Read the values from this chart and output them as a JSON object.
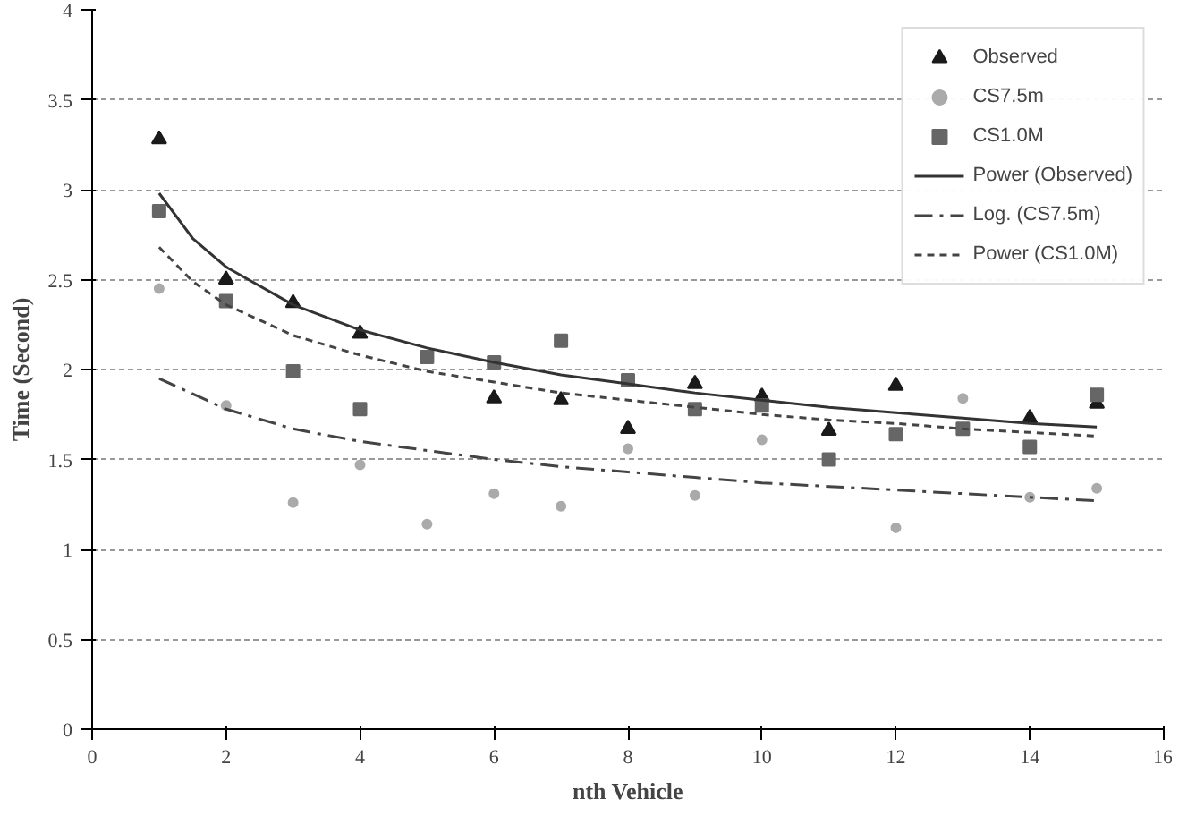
{
  "chart_data": {
    "type": "scatter",
    "xlabel": "nth Vehicle",
    "ylabel": "Time (Second)",
    "xlim": [
      0,
      16
    ],
    "xticks": [
      0,
      2,
      4,
      6,
      8,
      10,
      12,
      14,
      16
    ],
    "ylim": [
      0,
      4
    ],
    "yticks": [
      0,
      0.5,
      1,
      1.5,
      2,
      2.5,
      3,
      3.5,
      4
    ],
    "x": [
      1,
      2,
      3,
      4,
      5,
      6,
      7,
      8,
      9,
      10,
      11,
      12,
      13,
      14,
      15
    ],
    "grid": "y",
    "legend": "top right",
    "series": [
      {
        "name": "Observed",
        "color": "#1a1a1a",
        "marker": "triangle",
        "values": [
          3.28,
          2.5,
          2.37,
          2.2,
          null,
          1.84,
          1.83,
          1.67,
          1.92,
          1.85,
          1.66,
          1.91,
          null,
          1.73,
          1.81
        ]
      },
      {
        "name": "CS7.5m",
        "color": "#aaaaaa",
        "marker": "circle",
        "values": [
          2.45,
          1.8,
          1.26,
          1.47,
          1.14,
          1.31,
          1.24,
          1.56,
          1.3,
          1.61,
          null,
          1.12,
          1.84,
          1.29,
          1.34
        ]
      },
      {
        "name": "CS1.0M",
        "color": "#666666",
        "marker": "square",
        "values": [
          2.88,
          2.38,
          1.99,
          1.78,
          2.07,
          2.04,
          2.16,
          1.94,
          1.78,
          1.8,
          1.5,
          1.64,
          1.67,
          1.57,
          1.86
        ]
      },
      {
        "name": "Power (Observed)",
        "type": "line",
        "color": "#333333",
        "line_style": "solid",
        "x": [
          1,
          1.5,
          2,
          3,
          4,
          5,
          6,
          7,
          8,
          9,
          10,
          11,
          12,
          13,
          14,
          15
        ],
        "values": [
          2.98,
          2.73,
          2.57,
          2.36,
          2.22,
          2.12,
          2.04,
          1.97,
          1.92,
          1.87,
          1.83,
          1.79,
          1.76,
          1.73,
          1.7,
          1.68
        ]
      },
      {
        "name": "Log. (CS7.5m)",
        "type": "line",
        "color": "#444444",
        "line_style": "dashed",
        "x": [
          1,
          2,
          3,
          4,
          5,
          6,
          7,
          8,
          9,
          10,
          11,
          12,
          13,
          14,
          15
        ],
        "values": [
          1.95,
          1.78,
          1.67,
          1.6,
          1.55,
          1.5,
          1.46,
          1.43,
          1.4,
          1.37,
          1.35,
          1.33,
          1.31,
          1.29,
          1.27
        ]
      },
      {
        "name": "Power (CS1.0M)",
        "type": "line",
        "color": "#444444",
        "line_style": "dotted",
        "x": [
          1,
          1.5,
          2,
          3,
          4,
          5,
          6,
          7,
          8,
          9,
          10,
          11,
          12,
          13,
          14,
          15
        ],
        "values": [
          2.68,
          2.49,
          2.36,
          2.19,
          2.08,
          1.99,
          1.93,
          1.87,
          1.83,
          1.79,
          1.75,
          1.72,
          1.7,
          1.67,
          1.65,
          1.63
        ]
      }
    ]
  }
}
